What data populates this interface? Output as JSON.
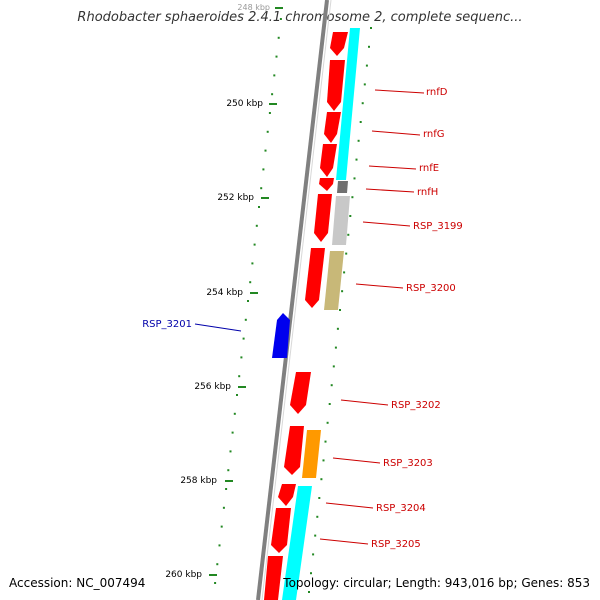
{
  "title": "Rhodobacter sphaeroides 2.4.1 chromosome 2, complete sequenc...",
  "footer": {
    "accession": "Accession: NC_007494",
    "summary": "Topology: circular; Length: 943,016 bp; Genes: 853"
  },
  "ticks": [
    {
      "label": "248 kbp"
    },
    {
      "label": "250 kbp"
    },
    {
      "label": "252 kbp"
    },
    {
      "label": "254 kbp"
    },
    {
      "label": "256 kbp"
    },
    {
      "label": "258 kbp"
    },
    {
      "label": "260 kbp"
    }
  ],
  "genes": [
    {
      "label": "rnfD",
      "strand": "reverse",
      "color": "#ff0000"
    },
    {
      "label": "rnfG",
      "strand": "reverse",
      "color": "#ff0000"
    },
    {
      "label": "rnfE",
      "strand": "reverse",
      "color": "#ff0000"
    },
    {
      "label": "rnfH",
      "strand": "reverse",
      "color": "#ff0000"
    },
    {
      "label": "RSP_3199",
      "strand": "reverse",
      "color": "#ff0000"
    },
    {
      "label": "RSP_3200",
      "strand": "reverse",
      "color": "#ff0000"
    },
    {
      "label": "RSP_3201",
      "strand": "forward",
      "color": "#0000ee"
    },
    {
      "label": "RSP_3202",
      "strand": "reverse",
      "color": "#ff0000"
    },
    {
      "label": "RSP_3203",
      "strand": "reverse",
      "color": "#ff0000"
    },
    {
      "label": "RSP_3204",
      "strand": "reverse",
      "color": "#ff0000"
    },
    {
      "label": "RSP_3205",
      "strand": "reverse",
      "color": "#ff0000"
    }
  ],
  "colors": {
    "backbone": "#808080",
    "tick": "#228822",
    "reverse_gene": "#ff0000",
    "forward_gene": "#0000ee",
    "cog_cyan": "#00ffff",
    "cog_gray": "#c0c0c0",
    "cog_darkgray": "#707070",
    "cog_khaki": "#c8b878",
    "cog_orange": "#ff9900"
  }
}
